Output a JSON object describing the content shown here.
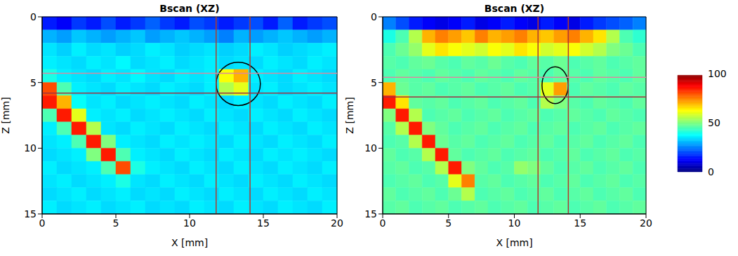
{
  "chart_data": [
    {
      "type": "heatmap",
      "title": "Bscan (XZ)",
      "x_label": "X [mm]",
      "y_label": "Z [mm]",
      "xlim": [
        0,
        20
      ],
      "ylim": [
        0,
        15
      ],
      "xticks": [
        0,
        5,
        10,
        15,
        20
      ],
      "yticks": [
        0,
        5,
        10,
        15
      ],
      "vertical_lines": [
        11.8,
        14.1
      ],
      "horizontal_lines": [
        4.3,
        5.8
      ],
      "circle": {
        "x": 13.3,
        "z": 5.1,
        "rx": 1.5,
        "rz": 1.65
      },
      "cells": [
        [
          15,
          12,
          18,
          15,
          20,
          15,
          18,
          22,
          18,
          15,
          20,
          18,
          15,
          18,
          20,
          15,
          22,
          15,
          18,
          20
        ],
        [
          30,
          28,
          32,
          30,
          28,
          30,
          32,
          28,
          30,
          32,
          30,
          28,
          25,
          30,
          28,
          30,
          32,
          30,
          28,
          30
        ],
        [
          35,
          33,
          36,
          34,
          35,
          33,
          34,
          36,
          35,
          33,
          34,
          35,
          33,
          34,
          36,
          35,
          33,
          34,
          35,
          36
        ],
        [
          36,
          35,
          34,
          36,
          35,
          37,
          34,
          35,
          36,
          34,
          35,
          36,
          34,
          35,
          34,
          36,
          35,
          34,
          36,
          35
        ],
        [
          40,
          36,
          35,
          34,
          36,
          35,
          37,
          35,
          34,
          36,
          35,
          36,
          62,
          70,
          36,
          35,
          34,
          36,
          35,
          34
        ],
        [
          80,
          45,
          36,
          35,
          34,
          36,
          35,
          34,
          36,
          35,
          34,
          36,
          55,
          60,
          35,
          36,
          34,
          35,
          36,
          35
        ],
        [
          85,
          70,
          38,
          35,
          36,
          34,
          35,
          36,
          35,
          34,
          36,
          35,
          34,
          36,
          35,
          34,
          36,
          35,
          34,
          36
        ],
        [
          45,
          85,
          60,
          36,
          35,
          36,
          34,
          35,
          36,
          35,
          34,
          36,
          35,
          34,
          36,
          35,
          34,
          36,
          35,
          34
        ],
        [
          36,
          45,
          85,
          55,
          35,
          34,
          36,
          35,
          34,
          36,
          35,
          34,
          36,
          35,
          34,
          36,
          35,
          34,
          36,
          35
        ],
        [
          35,
          36,
          45,
          85,
          50,
          36,
          35,
          34,
          36,
          35,
          36,
          35,
          34,
          36,
          35,
          34,
          36,
          35,
          34,
          36
        ],
        [
          34,
          35,
          36,
          50,
          85,
          45,
          36,
          35,
          34,
          36,
          35,
          34,
          36,
          35,
          34,
          36,
          35,
          36,
          35,
          34
        ],
        [
          36,
          34,
          35,
          36,
          45,
          80,
          40,
          36,
          35,
          34,
          36,
          35,
          34,
          36,
          35,
          34,
          36,
          35,
          34,
          36
        ],
        [
          35,
          36,
          34,
          35,
          36,
          40,
          35,
          34,
          36,
          35,
          34,
          36,
          35,
          34,
          36,
          35,
          34,
          36,
          35,
          34
        ],
        [
          34,
          35,
          36,
          34,
          35,
          36,
          34,
          35,
          34,
          36,
          35,
          34,
          36,
          35,
          34,
          36,
          35,
          34,
          36,
          35
        ],
        [
          36,
          34,
          35,
          36,
          34,
          35,
          36,
          34,
          35,
          34,
          36,
          35,
          34,
          36,
          35,
          34,
          36,
          35,
          34,
          36
        ]
      ]
    },
    {
      "type": "heatmap",
      "title": "Bscan (XZ)",
      "x_label": "X [mm]",
      "y_label": "Z [mm]",
      "xlim": [
        0,
        20
      ],
      "ylim": [
        0,
        15
      ],
      "xticks": [
        0,
        5,
        10,
        15,
        20
      ],
      "yticks": [
        0,
        5,
        10,
        15
      ],
      "vertical_lines": [
        11.8,
        14.1
      ],
      "horizontal_lines": [
        4.6,
        6.1
      ],
      "circle": {
        "x": 13.1,
        "z": 5.2,
        "rx": 1.0,
        "rz": 1.4
      },
      "cells": [
        [
          25,
          20,
          15,
          12,
          10,
          12,
          15,
          10,
          12,
          15,
          12,
          10,
          15,
          12,
          10,
          15,
          18,
          20,
          22,
          25
        ],
        [
          40,
          45,
          55,
          70,
          75,
          72,
          68,
          75,
          70,
          72,
          75,
          70,
          68,
          72,
          75,
          70,
          65,
          55,
          45,
          42
        ],
        [
          45,
          48,
          52,
          60,
          65,
          62,
          60,
          58,
          62,
          60,
          65,
          62,
          58,
          60,
          62,
          58,
          55,
          50,
          48,
          45
        ],
        [
          46,
          45,
          47,
          48,
          46,
          45,
          47,
          46,
          48,
          46,
          45,
          47,
          46,
          48,
          45,
          46,
          47,
          45,
          46,
          47
        ],
        [
          45,
          47,
          46,
          45,
          47,
          46,
          45,
          47,
          46,
          45,
          47,
          46,
          45,
          47,
          46,
          45,
          47,
          46,
          45,
          47
        ],
        [
          70,
          48,
          46,
          47,
          45,
          46,
          47,
          45,
          46,
          47,
          45,
          46,
          60,
          72,
          45,
          47,
          46,
          45,
          47,
          46
        ],
        [
          85,
          65,
          47,
          46,
          47,
          45,
          46,
          47,
          45,
          46,
          47,
          45,
          55,
          50,
          46,
          45,
          47,
          46,
          45,
          47
        ],
        [
          50,
          85,
          55,
          45,
          46,
          47,
          45,
          46,
          47,
          45,
          46,
          47,
          45,
          46,
          47,
          46,
          45,
          47,
          46,
          45
        ],
        [
          46,
          55,
          85,
          50,
          47,
          45,
          46,
          47,
          45,
          46,
          47,
          45,
          46,
          47,
          45,
          46,
          47,
          45,
          46,
          47
        ],
        [
          45,
          46,
          55,
          85,
          48,
          46,
          47,
          45,
          46,
          47,
          45,
          46,
          47,
          45,
          46,
          47,
          45,
          46,
          47,
          45
        ],
        [
          47,
          45,
          46,
          55,
          85,
          47,
          45,
          46,
          47,
          45,
          46,
          47,
          45,
          46,
          47,
          45,
          46,
          47,
          45,
          46
        ],
        [
          46,
          47,
          45,
          46,
          55,
          85,
          50,
          47,
          45,
          46,
          52,
          50,
          47,
          45,
          46,
          47,
          45,
          46,
          47,
          45
        ],
        [
          45,
          46,
          47,
          45,
          46,
          60,
          75,
          46,
          47,
          45,
          46,
          47,
          45,
          46,
          47,
          45,
          46,
          47,
          45,
          46
        ],
        [
          47,
          45,
          46,
          47,
          45,
          48,
          55,
          45,
          46,
          47,
          45,
          46,
          47,
          45,
          46,
          47,
          45,
          46,
          47,
          45
        ],
        [
          46,
          47,
          45,
          46,
          47,
          45,
          46,
          47,
          45,
          46,
          47,
          45,
          46,
          47,
          45,
          46,
          47,
          45,
          46,
          47
        ]
      ]
    }
  ],
  "colorbar": {
    "lim": [
      0,
      100
    ],
    "ticks": [
      0,
      50,
      100
    ]
  }
}
